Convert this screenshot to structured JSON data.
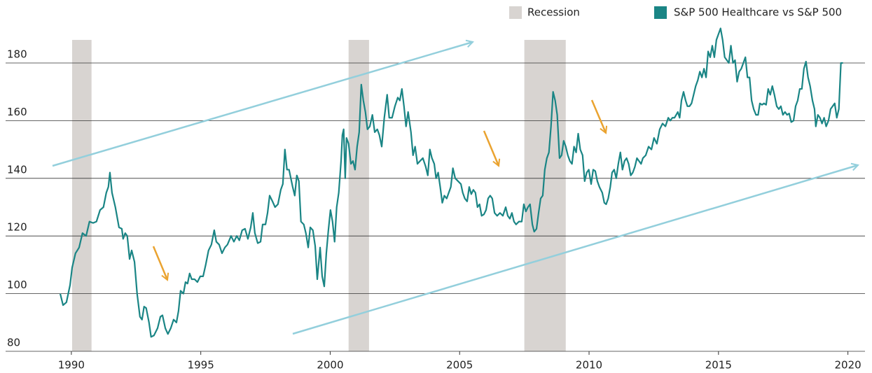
{
  "chart_data": {
    "type": "line",
    "xlim": [
      1987.46,
      2020.66
    ],
    "xticks": [
      1990,
      1995,
      2000,
      2005,
      2010,
      2015,
      2020
    ],
    "ylim": [
      80,
      195
    ],
    "yticks": [
      80,
      100,
      120,
      140,
      160,
      180
    ],
    "grid": true,
    "legend": "top-right",
    "recessions": {
      "name": "Recession",
      "color": "#d8d4d1",
      "periods": [
        [
          1990.03,
          1990.78
        ],
        [
          2000.71,
          2001.5
        ],
        [
          2007.5,
          2009.1
        ]
      ]
    },
    "x": [
      1989.57,
      1989.68,
      1989.81,
      1989.95,
      1990.03,
      1990.16,
      1990.3,
      1990.43,
      1990.57,
      1990.7,
      1990.84,
      1990.97,
      1991.11,
      1991.24,
      1991.35,
      1991.43,
      1991.49,
      1991.57,
      1991.7,
      1991.84,
      1991.95,
      1992.0,
      1992.08,
      1992.16,
      1992.25,
      1992.33,
      1992.44,
      1992.54,
      1992.65,
      1992.73,
      1992.81,
      1992.89,
      1993.0,
      1993.08,
      1993.19,
      1993.33,
      1993.44,
      1993.52,
      1993.63,
      1993.73,
      1993.84,
      1993.95,
      1994.06,
      1994.14,
      1994.22,
      1994.33,
      1994.41,
      1994.49,
      1994.57,
      1994.65,
      1994.76,
      1994.87,
      1994.98,
      1995.09,
      1995.19,
      1995.3,
      1995.41,
      1995.52,
      1995.6,
      1995.71,
      1995.82,
      1995.93,
      1996.03,
      1996.17,
      1996.28,
      1996.39,
      1996.49,
      1996.6,
      1996.71,
      1996.82,
      1996.93,
      1997.01,
      1997.09,
      1997.2,
      1997.31,
      1997.39,
      1997.5,
      1997.58,
      1997.66,
      1997.77,
      1997.87,
      1997.98,
      1998.09,
      1998.17,
      1998.25,
      1998.33,
      1998.41,
      1998.55,
      1998.63,
      1998.71,
      1998.79,
      1998.87,
      1998.98,
      1999.06,
      1999.15,
      1999.23,
      1999.33,
      1999.42,
      1999.5,
      1999.61,
      1999.69,
      1999.77,
      1999.85,
      1999.93,
      2000.01,
      2000.09,
      2000.17,
      2000.25,
      2000.33,
      2000.42,
      2000.47,
      2000.52,
      2000.58,
      2000.63,
      2000.71,
      2000.8,
      2000.88,
      2000.96,
      2001.04,
      2001.12,
      2001.2,
      2001.28,
      2001.36,
      2001.44,
      2001.53,
      2001.63,
      2001.72,
      2001.82,
      2001.9,
      2001.99,
      2002.09,
      2002.2,
      2002.28,
      2002.39,
      2002.5,
      2002.61,
      2002.69,
      2002.77,
      2002.85,
      2002.93,
      2003.01,
      2003.12,
      2003.2,
      2003.28,
      2003.37,
      2003.47,
      2003.58,
      2003.69,
      2003.77,
      2003.85,
      2003.93,
      2004.02,
      2004.09,
      2004.17,
      2004.25,
      2004.33,
      2004.41,
      2004.5,
      2004.58,
      2004.66,
      2004.74,
      2004.83,
      2004.94,
      2005.05,
      2005.12,
      2005.2,
      2005.29,
      2005.37,
      2005.45,
      2005.53,
      2005.61,
      2005.69,
      2005.77,
      2005.85,
      2005.94,
      2006.02,
      2006.1,
      2006.18,
      2006.26,
      2006.35,
      2006.45,
      2006.56,
      2006.67,
      2006.78,
      2006.86,
      2006.94,
      2007.02,
      2007.1,
      2007.18,
      2007.29,
      2007.4,
      2007.48,
      2007.56,
      2007.64,
      2007.72,
      2007.81,
      2007.88,
      2007.97,
      2008.05,
      2008.13,
      2008.21,
      2008.29,
      2008.37,
      2008.45,
      2008.53,
      2008.61,
      2008.69,
      2008.77,
      2008.86,
      2008.94,
      2009.02,
      2009.1,
      2009.18,
      2009.26,
      2009.34,
      2009.42,
      2009.5,
      2009.58,
      2009.66,
      2009.75,
      2009.83,
      2009.91,
      2009.99,
      2010.08,
      2010.16,
      2010.24,
      2010.32,
      2010.4,
      2010.51,
      2010.59,
      2010.66,
      2010.74,
      2010.82,
      2010.89,
      2010.97,
      2011.05,
      2011.13,
      2011.21,
      2011.29,
      2011.37,
      2011.45,
      2011.53,
      2011.61,
      2011.69,
      2011.77,
      2011.85,
      2011.93,
      2012.01,
      2012.08,
      2012.19,
      2012.3,
      2012.41,
      2012.51,
      2012.62,
      2012.73,
      2012.84,
      2012.95,
      2013.06,
      2013.14,
      2013.22,
      2013.3,
      2013.43,
      2013.5,
      2013.57,
      2013.65,
      2013.73,
      2013.8,
      2013.88,
      2013.96,
      2014.04,
      2014.12,
      2014.2,
      2014.28,
      2014.36,
      2014.44,
      2014.52,
      2014.6,
      2014.68,
      2014.76,
      2014.84,
      2014.92,
      2015.0,
      2015.08,
      2015.16,
      2015.24,
      2015.32,
      2015.4,
      2015.48,
      2015.56,
      2015.64,
      2015.72,
      2015.8,
      2015.88,
      2015.96,
      2016.04,
      2016.12,
      2016.2,
      2016.28,
      2016.36,
      2016.45,
      2016.53,
      2016.6,
      2016.68,
      2016.76,
      2016.84,
      2016.92,
      2017.0,
      2017.08,
      2017.16,
      2017.25,
      2017.33,
      2017.41,
      2017.49,
      2017.57,
      2017.65,
      2017.73,
      2017.81,
      2017.9,
      2017.98,
      2018.06,
      2018.14,
      2018.22,
      2018.3,
      2018.38,
      2018.46,
      2018.54,
      2018.63,
      2018.71,
      2018.76,
      2018.84,
      2018.92,
      2019.0,
      2019.08,
      2019.16,
      2019.25,
      2019.33,
      2019.41,
      2019.49,
      2019.57,
      2019.65,
      2019.73,
      2019.81
    ],
    "series": [
      {
        "name": "S&P 500 Healthcare vs S&P 500",
        "color": "#1a8585",
        "values": [
          100,
          96,
          97,
          103,
          109,
          114,
          116,
          121,
          120,
          125,
          124.5,
          125,
          129,
          130,
          135,
          137,
          142,
          135,
          130,
          123,
          122.5,
          119,
          121,
          120,
          112,
          115,
          111,
          100,
          92,
          91,
          95.5,
          95,
          90,
          85,
          85.5,
          88,
          92,
          92.5,
          88,
          86,
          88,
          91,
          90,
          94,
          101,
          100,
          104,
          103.5,
          107,
          105,
          105,
          104,
          106,
          106,
          110,
          115,
          117,
          122,
          118,
          117,
          114,
          116,
          117,
          120,
          118,
          120,
          118.5,
          122,
          122.5,
          119,
          123,
          128,
          121,
          117.5,
          118,
          124,
          124,
          128,
          134,
          132,
          130,
          131,
          136,
          138,
          150,
          143,
          143,
          137,
          134,
          141,
          139,
          125,
          124,
          121,
          116,
          123,
          122,
          116.5,
          105,
          116,
          106,
          102.5,
          114,
          122,
          129,
          125,
          118,
          130,
          135,
          146,
          155,
          157,
          140,
          154,
          152,
          145,
          146,
          143,
          151,
          156,
          172.5,
          167,
          163,
          157,
          158,
          162,
          156,
          157,
          155,
          151,
          161,
          169,
          161,
          161,
          165,
          168,
          167,
          171,
          165,
          158,
          163,
          156,
          148,
          151,
          145,
          146,
          147,
          144,
          141,
          150,
          147,
          145,
          140,
          142,
          137,
          131.5,
          134,
          133,
          135,
          137,
          143.5,
          140,
          139,
          138,
          135,
          133,
          132,
          137,
          134.5,
          136,
          135,
          130,
          131,
          127,
          127.5,
          129,
          133,
          134,
          133,
          128,
          127,
          128,
          127,
          130,
          127,
          126,
          128,
          125,
          124,
          125,
          125,
          131,
          128.5,
          130,
          131,
          124,
          121.5,
          122.5,
          128,
          133,
          134,
          143,
          147,
          149,
          158,
          170,
          167,
          162,
          147,
          148,
          153,
          151,
          148,
          146,
          145,
          151,
          149,
          155.5,
          150,
          148,
          139,
          142,
          143,
          138,
          143,
          142.5,
          139,
          137,
          135,
          131.5,
          131,
          133,
          137,
          142,
          143,
          140,
          145,
          149,
          143,
          146,
          147,
          145,
          141,
          142,
          144,
          147,
          146,
          145,
          147,
          148,
          151,
          150,
          154,
          152,
          157,
          159,
          158,
          161,
          160,
          161,
          161,
          163,
          161,
          167,
          170,
          167,
          165,
          165,
          166,
          169,
          172,
          174,
          177,
          175,
          178,
          175,
          184,
          182,
          186,
          182,
          188,
          190,
          192,
          188,
          182,
          181,
          180,
          186,
          180,
          181,
          173.5,
          177,
          178,
          180,
          182,
          175,
          175,
          167,
          164,
          162,
          162,
          166,
          165.5,
          166,
          165.5,
          171,
          169,
          172,
          169,
          165,
          164,
          165,
          162,
          163,
          162,
          162.5,
          159.5,
          160,
          165,
          167,
          171,
          171,
          178,
          180.5,
          175,
          172,
          167,
          164,
          158,
          162,
          161,
          159,
          161,
          158,
          160,
          164,
          165,
          166,
          161,
          164,
          180,
          180
        ]
      }
    ]
  }
}
